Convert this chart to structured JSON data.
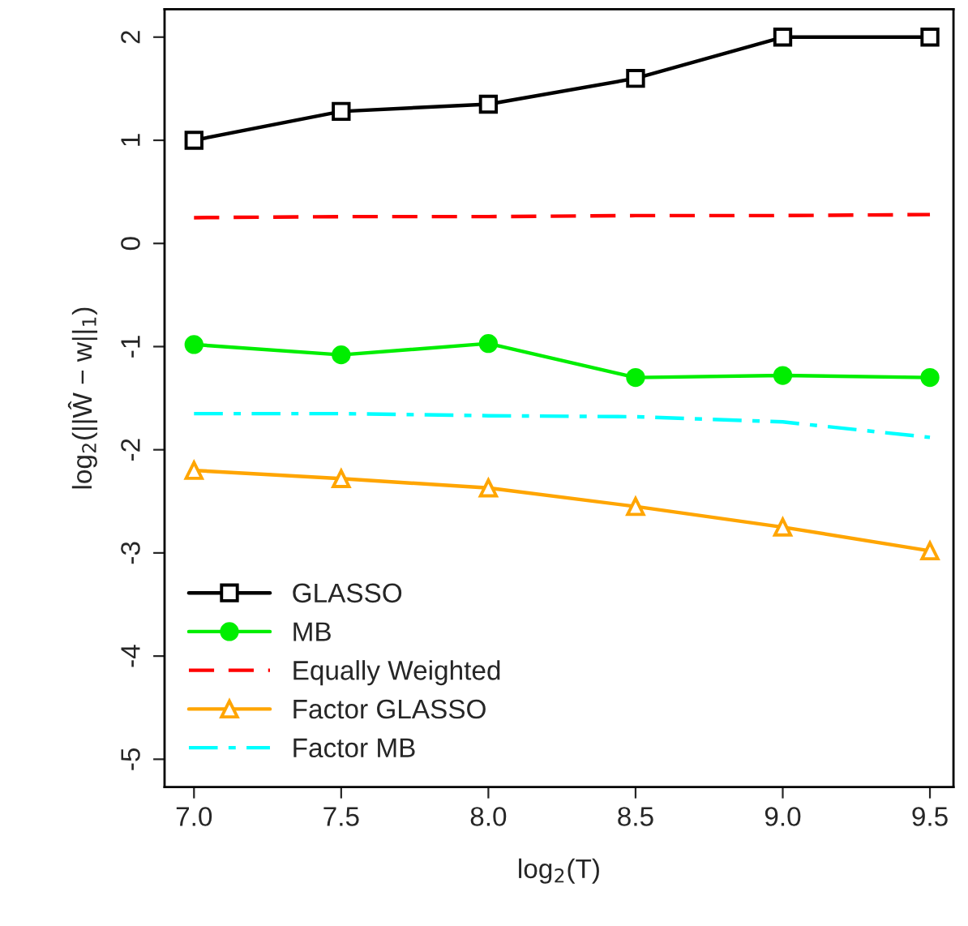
{
  "chart_data": {
    "type": "line",
    "xlabel": "log$_{2}$(T)",
    "ylabel": "log$_{2}$(||Ŵ − w||$_{1}$)",
    "x": [
      7.0,
      7.5,
      8.0,
      8.5,
      9.0,
      9.5
    ],
    "xlim": [
      6.9,
      9.58
    ],
    "ylim": [
      -5.27,
      2.27
    ],
    "xticks": [
      {
        "value": 7.0,
        "label": "7.0"
      },
      {
        "value": 7.5,
        "label": "7.5"
      },
      {
        "value": 8.0,
        "label": "8.0"
      },
      {
        "value": 8.5,
        "label": "8.5"
      },
      {
        "value": 9.0,
        "label": "9.0"
      },
      {
        "value": 9.5,
        "label": "9.5"
      }
    ],
    "yticks": [
      -5,
      -4,
      -3,
      -2,
      -1,
      0,
      1,
      2
    ],
    "grid": false,
    "legend": "bottom left",
    "series": [
      {
        "name": "GLASSO",
        "color": "#000000",
        "marker": "square",
        "line_style": "solid",
        "values": [
          1.0,
          1.28,
          1.35,
          1.6,
          2.0,
          2.0
        ]
      },
      {
        "name": "MB",
        "color": "#00ee00",
        "marker": "circle",
        "line_style": "solid",
        "values": [
          -0.98,
          -1.08,
          -0.97,
          -1.3,
          -1.28,
          -1.3
        ]
      },
      {
        "name": "Equally Weighted",
        "color": "#ff0000",
        "marker": "none",
        "line_style": "dashed",
        "values": [
          0.25,
          0.26,
          0.26,
          0.27,
          0.27,
          0.28
        ]
      },
      {
        "name": "Factor GLASSO",
        "color": "#ffa500",
        "marker": "triangle",
        "line_style": "solid",
        "values": [
          -2.2,
          -2.28,
          -2.37,
          -2.55,
          -2.75,
          -2.98
        ]
      },
      {
        "name": "Factor MB",
        "color": "#00ffff",
        "marker": "none",
        "line_style": "dashdot",
        "values": [
          -1.65,
          -1.65,
          -1.67,
          -1.68,
          -1.73,
          -1.88
        ]
      }
    ]
  }
}
